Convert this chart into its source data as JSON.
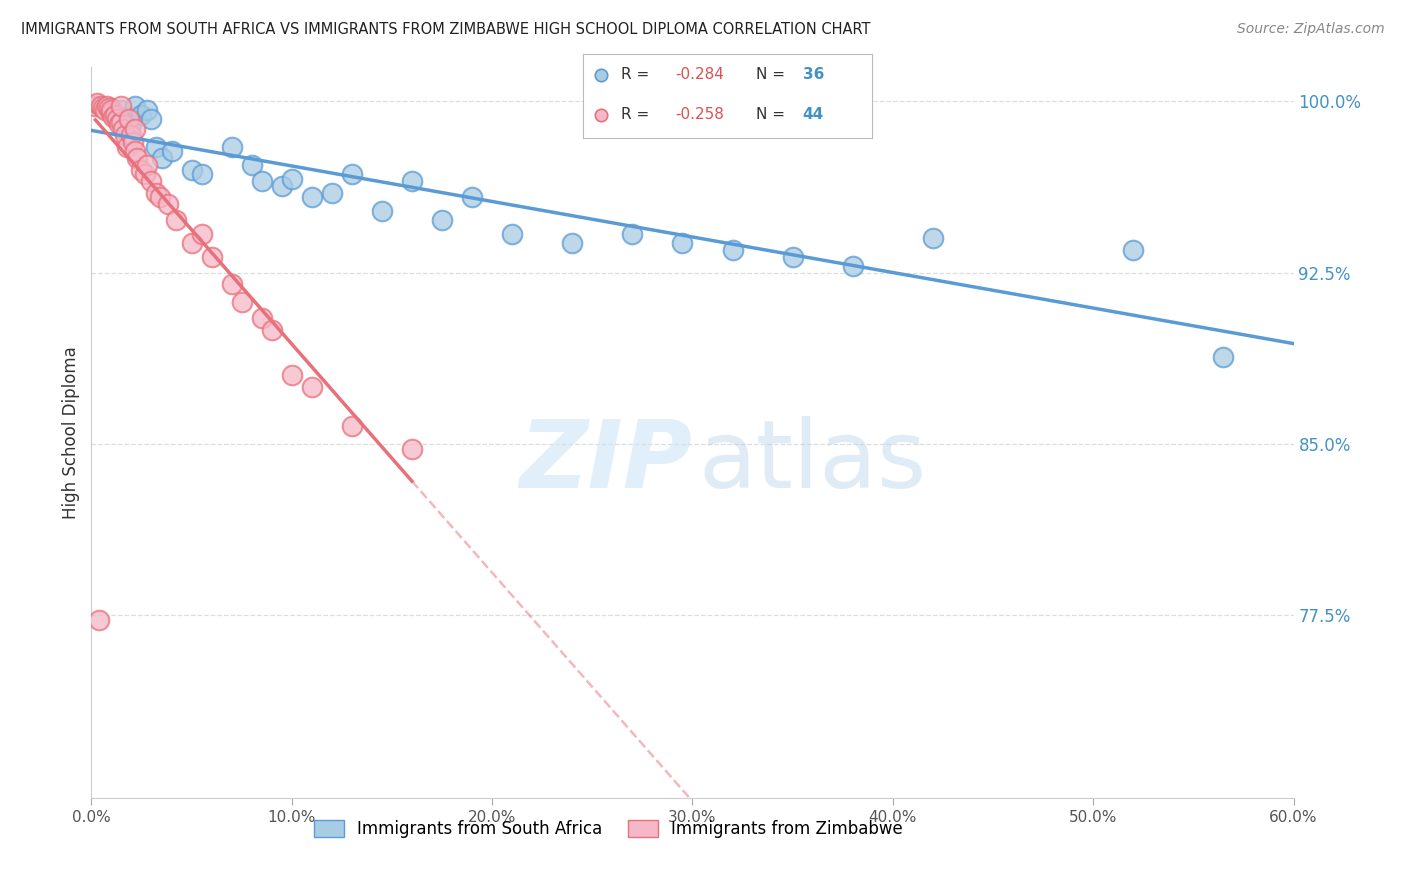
{
  "title": "IMMIGRANTS FROM SOUTH AFRICA VS IMMIGRANTS FROM ZIMBABWE HIGH SCHOOL DIPLOMA CORRELATION CHART",
  "source": "Source: ZipAtlas.com",
  "ylabel": "High School Diploma",
  "legend_labels": [
    "Immigrants from South Africa",
    "Immigrants from Zimbabwe"
  ],
  "xlim": [
    0.0,
    0.6
  ],
  "ylim": [
    0.695,
    1.015
  ],
  "xtick_labels": [
    "0.0%",
    "10.0%",
    "20.0%",
    "30.0%",
    "40.0%",
    "50.0%",
    "60.0%"
  ],
  "xtick_values": [
    0.0,
    0.1,
    0.2,
    0.3,
    0.4,
    0.5,
    0.6
  ],
  "ytick_labels": [
    "100.0%",
    "92.5%",
    "85.0%",
    "77.5%"
  ],
  "ytick_values": [
    1.0,
    0.925,
    0.85,
    0.775
  ],
  "color_blue": "#a8cce4",
  "color_pink": "#f4b8c8",
  "color_line_blue": "#5b9bd5",
  "color_line_pink": "#e8707a",
  "sa_x": [
    0.005,
    0.01,
    0.015,
    0.018,
    0.02,
    0.022,
    0.025,
    0.028,
    0.03,
    0.032,
    0.035,
    0.04,
    0.05,
    0.055,
    0.07,
    0.08,
    0.085,
    0.095,
    0.1,
    0.11,
    0.12,
    0.13,
    0.145,
    0.16,
    0.175,
    0.19,
    0.21,
    0.24,
    0.27,
    0.295,
    0.32,
    0.35,
    0.38,
    0.42,
    0.52,
    0.565
  ],
  "sa_y": [
    0.998,
    0.997,
    0.996,
    0.993,
    0.99,
    0.998,
    0.994,
    0.996,
    0.992,
    0.98,
    0.975,
    0.978,
    0.97,
    0.968,
    0.98,
    0.972,
    0.965,
    0.963,
    0.966,
    0.958,
    0.96,
    0.968,
    0.952,
    0.965,
    0.948,
    0.958,
    0.942,
    0.938,
    0.942,
    0.938,
    0.935,
    0.932,
    0.928,
    0.94,
    0.935,
    0.888
  ],
  "zim_x": [
    0.002,
    0.003,
    0.005,
    0.006,
    0.007,
    0.008,
    0.009,
    0.01,
    0.01,
    0.011,
    0.012,
    0.013,
    0.014,
    0.015,
    0.015,
    0.016,
    0.017,
    0.018,
    0.019,
    0.02,
    0.021,
    0.022,
    0.022,
    0.023,
    0.025,
    0.027,
    0.028,
    0.03,
    0.032,
    0.034,
    0.038,
    0.042,
    0.05,
    0.055,
    0.06,
    0.07,
    0.075,
    0.085,
    0.09,
    0.1,
    0.11,
    0.13,
    0.16,
    0.004
  ],
  "zim_y": [
    0.998,
    0.999,
    0.998,
    0.997,
    0.996,
    0.998,
    0.997,
    0.995,
    0.996,
    0.993,
    0.994,
    0.992,
    0.99,
    0.991,
    0.998,
    0.988,
    0.985,
    0.98,
    0.992,
    0.985,
    0.982,
    0.978,
    0.988,
    0.975,
    0.97,
    0.968,
    0.972,
    0.965,
    0.96,
    0.958,
    0.955,
    0.948,
    0.938,
    0.942,
    0.932,
    0.92,
    0.912,
    0.905,
    0.9,
    0.88,
    0.875,
    0.858,
    0.848,
    0.773
  ],
  "watermark_zip": "ZIP",
  "watermark_atlas": "atlas",
  "background_color": "#ffffff",
  "grid_color": "#dddddd"
}
